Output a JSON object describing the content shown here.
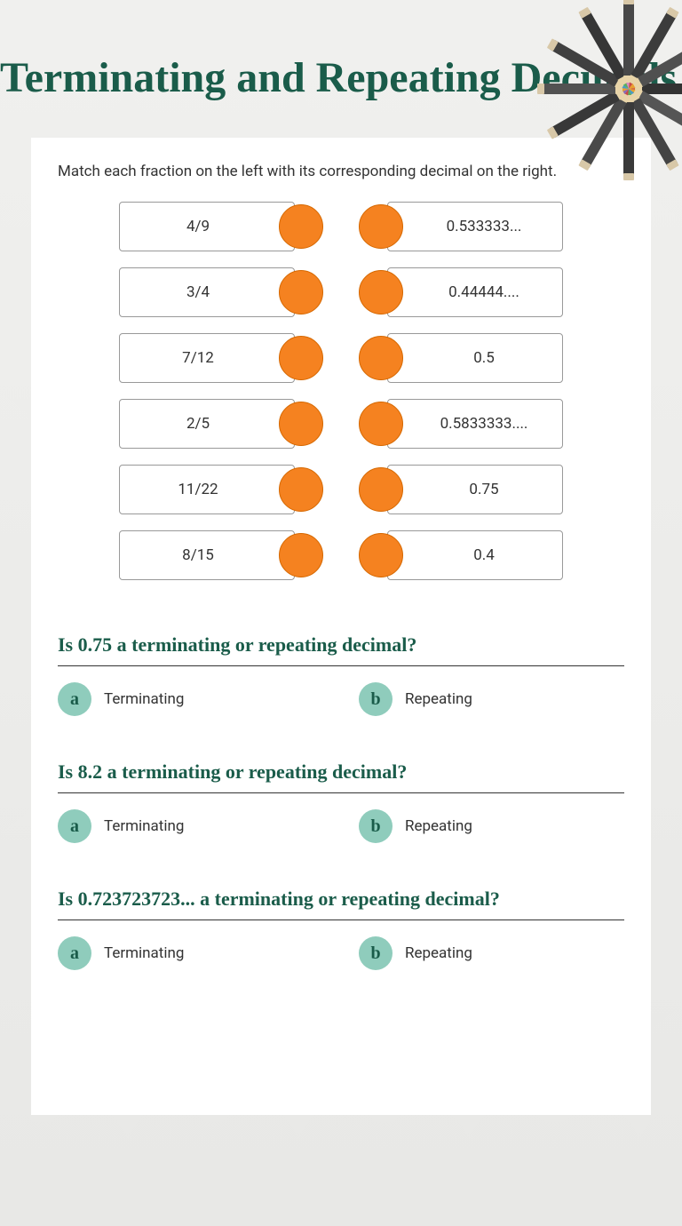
{
  "title": "Terminating and Repeating Decimals",
  "instruction": "Match each fraction on the left with its corresponding decimal on the right.",
  "colors": {
    "title": "#1a5c4a",
    "dot": "#f58220",
    "dot_border": "#d66800",
    "badge": "#8fccbc",
    "badge_text": "#1a5c4a",
    "card_bg": "#ffffff",
    "body_bg_top": "#f0f0ee",
    "body_bg_bottom": "#e8e8e6"
  },
  "match": {
    "left": [
      "4/9",
      "3/4",
      "7/12",
      "2/5",
      "11/22",
      "8/15"
    ],
    "right": [
      "0.533333...",
      "0.44444....",
      "0.5",
      "0.5833333....",
      "0.75",
      "0.4"
    ]
  },
  "questions": [
    {
      "prompt": "Is 0.75 a terminating or repeating decimal?",
      "options": [
        {
          "key": "a",
          "label": "Terminating"
        },
        {
          "key": "b",
          "label": "Repeating"
        }
      ]
    },
    {
      "prompt": "Is 8.2 a terminating or repeating decimal?",
      "options": [
        {
          "key": "a",
          "label": "Terminating"
        },
        {
          "key": "b",
          "label": "Repeating"
        }
      ]
    },
    {
      "prompt": "Is 0.723723723... a terminating or repeating decimal?",
      "options": [
        {
          "key": "a",
          "label": "Terminating"
        },
        {
          "key": "b",
          "label": "Repeating"
        }
      ]
    }
  ],
  "pencil_colors": [
    "#333333",
    "#555555",
    "#444444",
    "#3a3a3a",
    "#4a4a4a",
    "#383838",
    "#525252",
    "#404040",
    "#363636",
    "#484848",
    "#3c3c3c",
    "#505050"
  ],
  "pencil_tips": [
    "#c94848",
    "#e8a030",
    "#4a9cc4",
    "#5ab05a",
    "#c94848",
    "#8a6eb8",
    "#e8a030",
    "#4a9cc4",
    "#5ab05a",
    "#d88ac0",
    "#c94848",
    "#e8a030"
  ]
}
